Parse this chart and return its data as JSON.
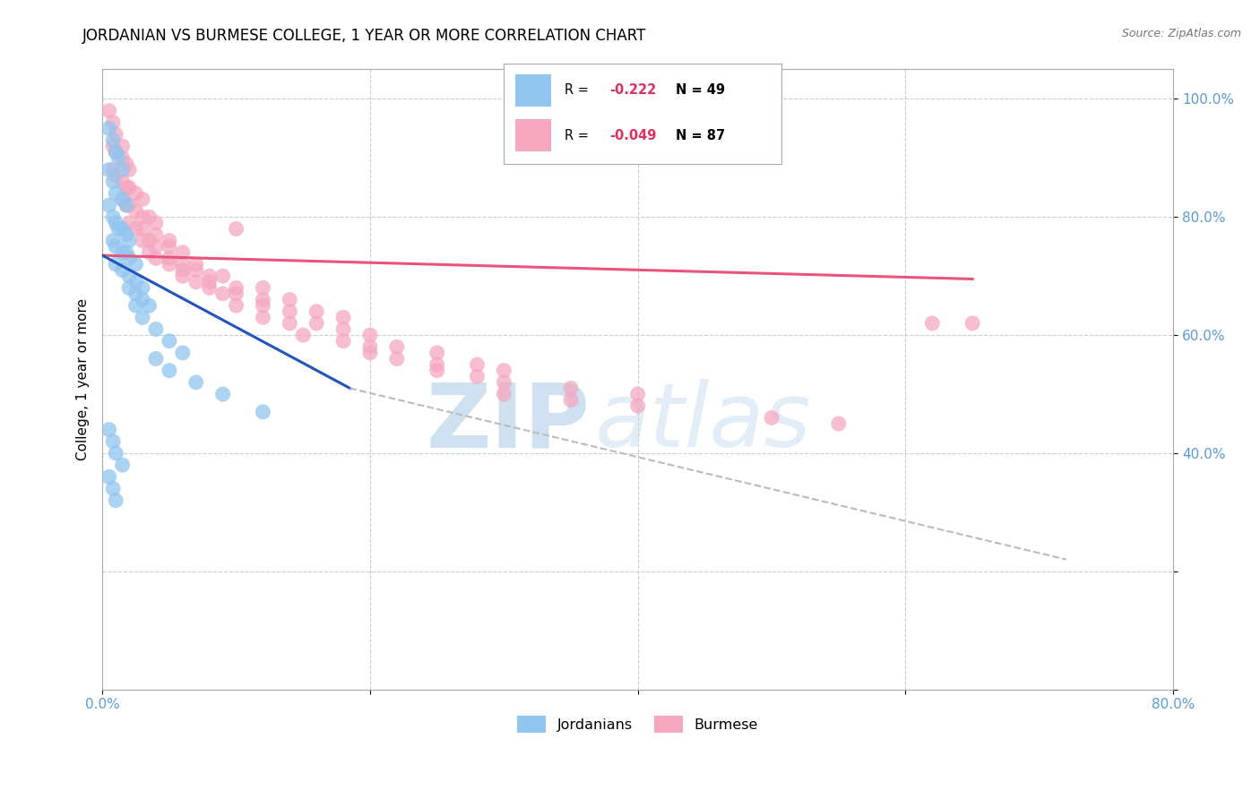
{
  "title": "JORDANIAN VS BURMESE COLLEGE, 1 YEAR OR MORE CORRELATION CHART",
  "source": "Source: ZipAtlas.com",
  "ylabel": "College, 1 year or more",
  "watermark_zip": "ZIP",
  "watermark_atlas": "atlas",
  "x_min": 0.0,
  "x_max": 0.8,
  "y_min": 0.0,
  "y_max": 1.05,
  "jordanian_color": "#92c5f0",
  "burmese_color": "#f5a8c0",
  "jordanian_line_color": "#2255bb",
  "burmese_line_color": "#e8547a",
  "dashed_line_color": "#bbbbbb",
  "legend_r_jordanian": "R = ",
  "legend_r_val_jordanian": "-0.222",
  "legend_n_jordanian": "N = 49",
  "legend_r_burmese": "R = ",
  "legend_r_val_burmese": "-0.049",
  "legend_n_burmese": "N = 87",
  "jordanian_points_x": [
    0.005,
    0.008,
    0.01,
    0.012,
    0.015,
    0.005,
    0.008,
    0.01,
    0.015,
    0.018,
    0.005,
    0.008,
    0.01,
    0.012,
    0.015,
    0.018,
    0.02,
    0.008,
    0.01,
    0.015,
    0.018,
    0.02,
    0.025,
    0.01,
    0.015,
    0.02,
    0.025,
    0.03,
    0.02,
    0.025,
    0.03,
    0.035,
    0.025,
    0.03,
    0.04,
    0.05,
    0.06,
    0.04,
    0.05,
    0.07,
    0.09,
    0.12,
    0.005,
    0.008,
    0.01,
    0.015,
    0.005,
    0.008,
    0.01
  ],
  "jordanian_points_y": [
    0.95,
    0.93,
    0.91,
    0.9,
    0.88,
    0.88,
    0.86,
    0.84,
    0.83,
    0.82,
    0.82,
    0.8,
    0.79,
    0.78,
    0.78,
    0.77,
    0.76,
    0.76,
    0.75,
    0.74,
    0.74,
    0.73,
    0.72,
    0.72,
    0.71,
    0.7,
    0.69,
    0.68,
    0.68,
    0.67,
    0.66,
    0.65,
    0.65,
    0.63,
    0.61,
    0.59,
    0.57,
    0.56,
    0.54,
    0.52,
    0.5,
    0.47,
    0.44,
    0.42,
    0.4,
    0.38,
    0.36,
    0.34,
    0.32
  ],
  "burmese_points_x": [
    0.005,
    0.008,
    0.01,
    0.015,
    0.008,
    0.01,
    0.015,
    0.018,
    0.02,
    0.008,
    0.01,
    0.015,
    0.018,
    0.02,
    0.025,
    0.03,
    0.015,
    0.018,
    0.02,
    0.025,
    0.03,
    0.035,
    0.04,
    0.02,
    0.025,
    0.03,
    0.04,
    0.05,
    0.03,
    0.035,
    0.04,
    0.05,
    0.06,
    0.035,
    0.04,
    0.05,
    0.06,
    0.07,
    0.05,
    0.06,
    0.07,
    0.08,
    0.09,
    0.06,
    0.07,
    0.08,
    0.1,
    0.12,
    0.08,
    0.09,
    0.1,
    0.12,
    0.14,
    0.1,
    0.12,
    0.14,
    0.16,
    0.18,
    0.12,
    0.14,
    0.16,
    0.18,
    0.2,
    0.15,
    0.18,
    0.2,
    0.22,
    0.25,
    0.2,
    0.22,
    0.25,
    0.28,
    0.3,
    0.25,
    0.28,
    0.3,
    0.35,
    0.4,
    0.3,
    0.35,
    0.4,
    0.5,
    0.55,
    0.62,
    0.65,
    0.1
  ],
  "burmese_points_y": [
    0.98,
    0.96,
    0.94,
    0.92,
    0.92,
    0.91,
    0.9,
    0.89,
    0.88,
    0.88,
    0.87,
    0.86,
    0.85,
    0.85,
    0.84,
    0.83,
    0.83,
    0.82,
    0.82,
    0.81,
    0.8,
    0.8,
    0.79,
    0.79,
    0.78,
    0.78,
    0.77,
    0.76,
    0.76,
    0.76,
    0.75,
    0.75,
    0.74,
    0.74,
    0.73,
    0.73,
    0.72,
    0.72,
    0.72,
    0.71,
    0.71,
    0.7,
    0.7,
    0.7,
    0.69,
    0.69,
    0.68,
    0.68,
    0.68,
    0.67,
    0.67,
    0.66,
    0.66,
    0.65,
    0.65,
    0.64,
    0.64,
    0.63,
    0.63,
    0.62,
    0.62,
    0.61,
    0.6,
    0.6,
    0.59,
    0.58,
    0.58,
    0.57,
    0.57,
    0.56,
    0.55,
    0.55,
    0.54,
    0.54,
    0.53,
    0.52,
    0.51,
    0.5,
    0.5,
    0.49,
    0.48,
    0.46,
    0.45,
    0.62,
    0.62,
    0.78
  ],
  "jordanian_line_x": [
    0.0,
    0.185
  ],
  "jordanian_line_y": [
    0.735,
    0.51
  ],
  "burmese_line_x": [
    0.0,
    0.65
  ],
  "burmese_line_y": [
    0.735,
    0.695
  ],
  "dashed_line_x": [
    0.185,
    0.72
  ],
  "dashed_line_y": [
    0.51,
    0.22
  ],
  "background_color": "#ffffff",
  "title_fontsize": 12,
  "axis_label_fontsize": 11,
  "tick_fontsize": 11,
  "tick_color": "#5b9bd5",
  "grid_color": "#cccccc",
  "watermark_color_zip": "#b0cce8",
  "watermark_color_atlas": "#c8ddf0",
  "watermark_fontsize": 72
}
